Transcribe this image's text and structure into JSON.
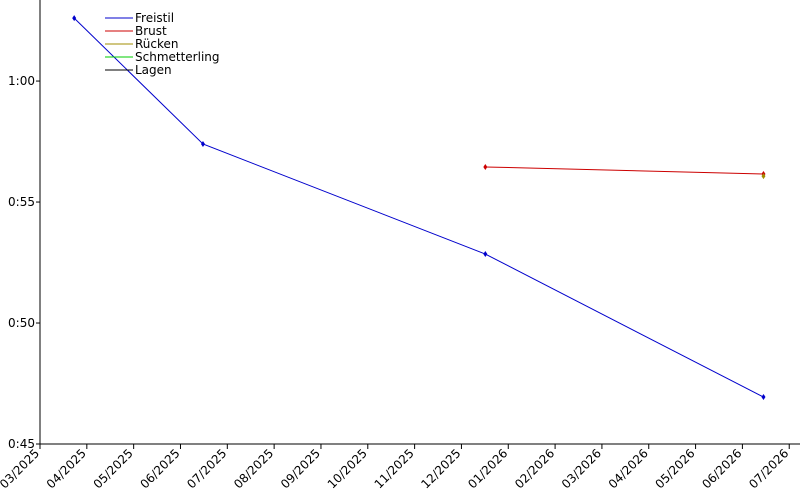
{
  "chart_data": {
    "type": "line",
    "xlim": [
      0,
      16.23
    ],
    "xticks": [
      {
        "value": 0,
        "label": "03/2025"
      },
      {
        "value": 1,
        "label": "04/2025"
      },
      {
        "value": 2,
        "label": "05/2025"
      },
      {
        "value": 3,
        "label": "06/2025"
      },
      {
        "value": 4,
        "label": "07/2025"
      },
      {
        "value": 5,
        "label": "08/2025"
      },
      {
        "value": 6,
        "label": "09/2025"
      },
      {
        "value": 7,
        "label": "10/2025"
      },
      {
        "value": 8,
        "label": "11/2025"
      },
      {
        "value": 9,
        "label": "12/2025"
      },
      {
        "value": 10,
        "label": "01/2026"
      },
      {
        "value": 11,
        "label": "02/2026"
      },
      {
        "value": 12,
        "label": "03/2026"
      },
      {
        "value": 13,
        "label": "04/2026"
      },
      {
        "value": 14,
        "label": "05/2026"
      },
      {
        "value": 15,
        "label": "06/2026"
      },
      {
        "value": 16,
        "label": "07/2026"
      }
    ],
    "ylim": [
      45,
      63.35
    ],
    "yticks": [
      {
        "value": 45,
        "label": "0:45"
      },
      {
        "value": 50,
        "label": "0:50"
      },
      {
        "value": 55,
        "label": "0:55"
      },
      {
        "value": 60,
        "label": "1:00"
      }
    ],
    "legend": "upper left",
    "series": [
      {
        "name": "Freistil",
        "color": "#0000cc",
        "x": [
          0.73,
          3.48,
          9.51,
          15.45
        ],
        "values": [
          62.6,
          57.4,
          52.85,
          46.94
        ]
      },
      {
        "name": "Brust",
        "color": "#cc0000",
        "x": [
          9.51,
          15.45
        ],
        "values": [
          56.45,
          56.16
        ]
      },
      {
        "name": "Rücken",
        "color": "#a08c00",
        "x": [
          15.45
        ],
        "values": [
          56.07
        ]
      },
      {
        "name": "Schmetterling",
        "color": "#00cc00",
        "x": [],
        "values": []
      },
      {
        "name": "Lagen",
        "color": "#000000",
        "x": [],
        "values": []
      }
    ]
  }
}
